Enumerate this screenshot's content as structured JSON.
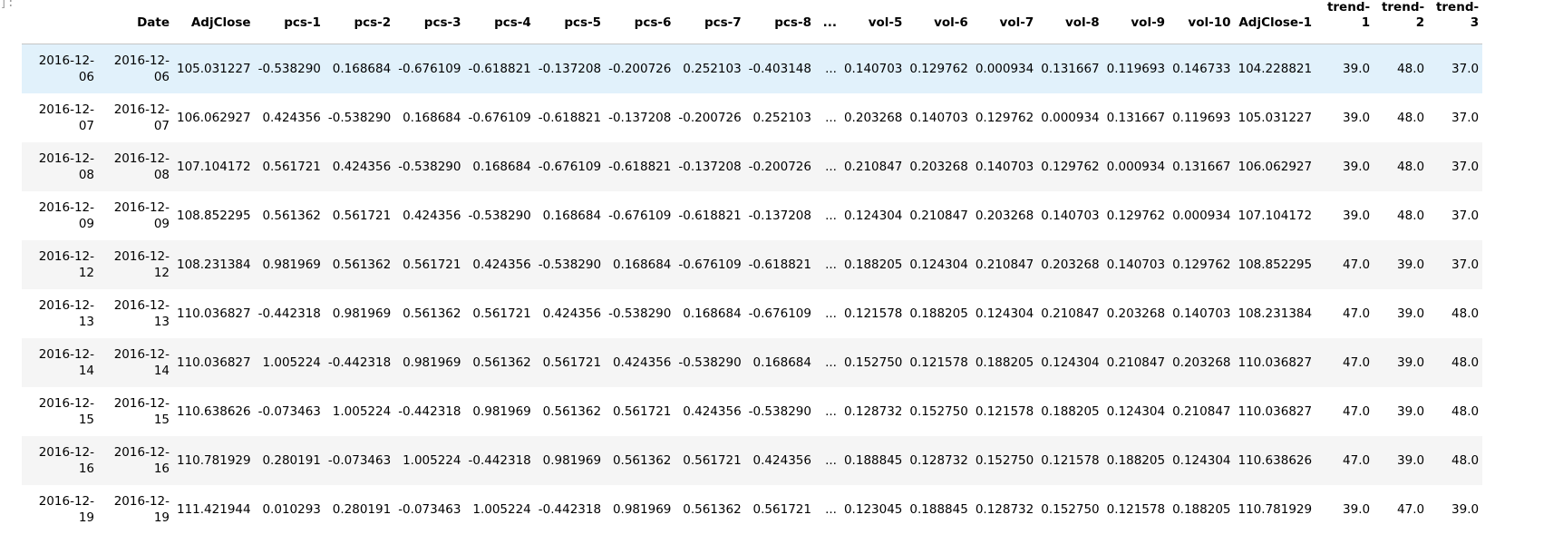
{
  "prompt": "]:",
  "columns": [
    "Date",
    "AdjClose",
    "pcs-1",
    "pcs-2",
    "pcs-3",
    "pcs-4",
    "pcs-5",
    "pcs-6",
    "pcs-7",
    "pcs-8",
    "...",
    "vol-5",
    "vol-6",
    "vol-7",
    "vol-8",
    "vol-9",
    "vol-10",
    "AdjClose-1",
    "trend-1",
    "trend-2",
    "trend-3"
  ],
  "rows": [
    {
      "index": "2016-12-06",
      "cells": [
        "2016-12-06",
        "105.031227",
        "-0.538290",
        "0.168684",
        "-0.676109",
        "-0.618821",
        "-0.137208",
        "-0.200726",
        "0.252103",
        "-0.403148",
        "...",
        "0.140703",
        "0.129762",
        "0.000934",
        "0.131667",
        "0.119693",
        "0.146733",
        "104.228821",
        "39.0",
        "48.0",
        "37.0"
      ]
    },
    {
      "index": "2016-12-07",
      "cells": [
        "2016-12-07",
        "106.062927",
        "0.424356",
        "-0.538290",
        "0.168684",
        "-0.676109",
        "-0.618821",
        "-0.137208",
        "-0.200726",
        "0.252103",
        "...",
        "0.203268",
        "0.140703",
        "0.129762",
        "0.000934",
        "0.131667",
        "0.119693",
        "105.031227",
        "39.0",
        "48.0",
        "37.0"
      ]
    },
    {
      "index": "2016-12-08",
      "cells": [
        "2016-12-08",
        "107.104172",
        "0.561721",
        "0.424356",
        "-0.538290",
        "0.168684",
        "-0.676109",
        "-0.618821",
        "-0.137208",
        "-0.200726",
        "...",
        "0.210847",
        "0.203268",
        "0.140703",
        "0.129762",
        "0.000934",
        "0.131667",
        "106.062927",
        "39.0",
        "48.0",
        "37.0"
      ]
    },
    {
      "index": "2016-12-09",
      "cells": [
        "2016-12-09",
        "108.852295",
        "0.561362",
        "0.561721",
        "0.424356",
        "-0.538290",
        "0.168684",
        "-0.676109",
        "-0.618821",
        "-0.137208",
        "...",
        "0.124304",
        "0.210847",
        "0.203268",
        "0.140703",
        "0.129762",
        "0.000934",
        "107.104172",
        "39.0",
        "48.0",
        "37.0"
      ]
    },
    {
      "index": "2016-12-12",
      "cells": [
        "2016-12-12",
        "108.231384",
        "0.981969",
        "0.561362",
        "0.561721",
        "0.424356",
        "-0.538290",
        "0.168684",
        "-0.676109",
        "-0.618821",
        "...",
        "0.188205",
        "0.124304",
        "0.210847",
        "0.203268",
        "0.140703",
        "0.129762",
        "108.852295",
        "47.0",
        "39.0",
        "37.0"
      ]
    },
    {
      "index": "2016-12-13",
      "cells": [
        "2016-12-13",
        "110.036827",
        "-0.442318",
        "0.981969",
        "0.561362",
        "0.561721",
        "0.424356",
        "-0.538290",
        "0.168684",
        "-0.676109",
        "...",
        "0.121578",
        "0.188205",
        "0.124304",
        "0.210847",
        "0.203268",
        "0.140703",
        "108.231384",
        "47.0",
        "39.0",
        "48.0"
      ]
    },
    {
      "index": "2016-12-14",
      "cells": [
        "2016-12-14",
        "110.036827",
        "1.005224",
        "-0.442318",
        "0.981969",
        "0.561362",
        "0.561721",
        "0.424356",
        "-0.538290",
        "0.168684",
        "...",
        "0.152750",
        "0.121578",
        "0.188205",
        "0.124304",
        "0.210847",
        "0.203268",
        "110.036827",
        "47.0",
        "39.0",
        "48.0"
      ]
    },
    {
      "index": "2016-12-15",
      "cells": [
        "2016-12-15",
        "110.638626",
        "-0.073463",
        "1.005224",
        "-0.442318",
        "0.981969",
        "0.561362",
        "0.561721",
        "0.424356",
        "-0.538290",
        "...",
        "0.128732",
        "0.152750",
        "0.121578",
        "0.188205",
        "0.124304",
        "0.210847",
        "110.036827",
        "47.0",
        "39.0",
        "48.0"
      ]
    },
    {
      "index": "2016-12-16",
      "cells": [
        "2016-12-16",
        "110.781929",
        "0.280191",
        "-0.073463",
        "1.005224",
        "-0.442318",
        "0.981969",
        "0.561362",
        "0.561721",
        "0.424356",
        "...",
        "0.188845",
        "0.128732",
        "0.152750",
        "0.121578",
        "0.188205",
        "0.124304",
        "110.638626",
        "47.0",
        "39.0",
        "48.0"
      ]
    },
    {
      "index": "2016-12-19",
      "cells": [
        "2016-12-19",
        "111.421944",
        "0.010293",
        "0.280191",
        "-0.073463",
        "1.005224",
        "-0.442318",
        "0.981969",
        "0.561362",
        "0.561721",
        "...",
        "0.123045",
        "0.188845",
        "0.128732",
        "0.152750",
        "0.121578",
        "0.188205",
        "110.781929",
        "39.0",
        "47.0",
        "39.0"
      ]
    }
  ],
  "colors": {
    "hover_row": "#e1f1fb",
    "striped_row": "#f5f5f5",
    "header_border": "#c4c4c4",
    "prompt": "#9e9e9e"
  }
}
